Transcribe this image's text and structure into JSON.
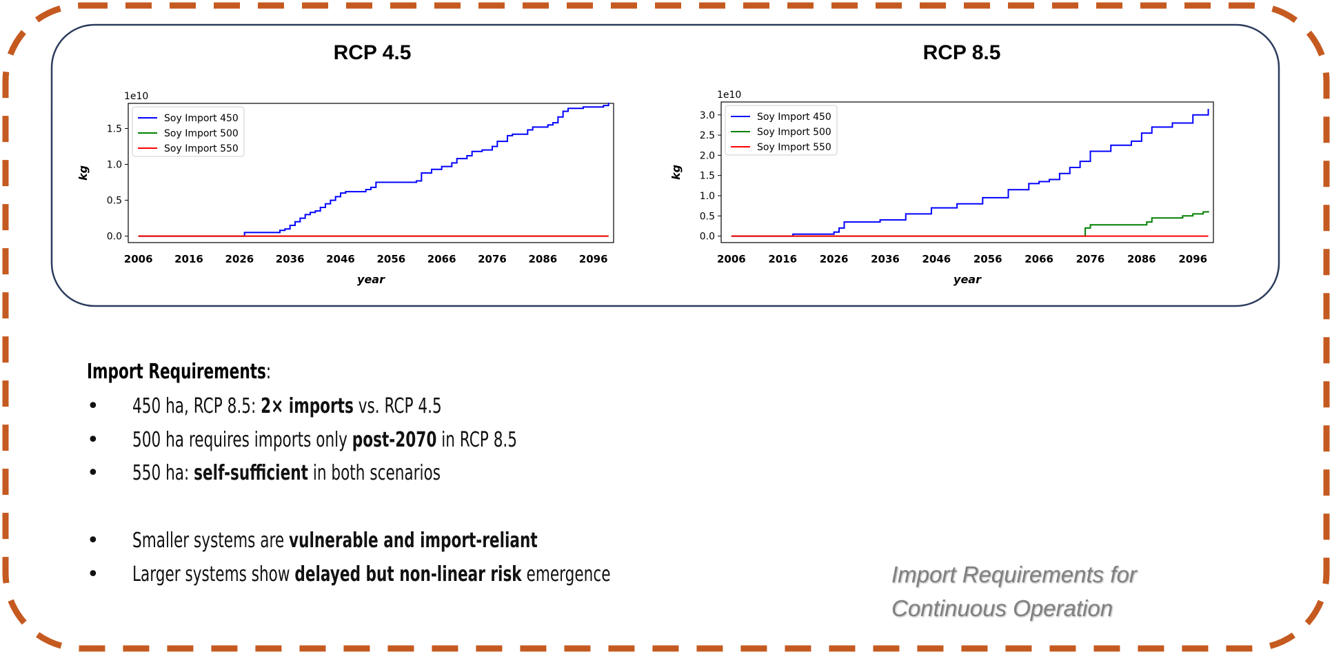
{
  "colors": {
    "frame_dash": "#c55a20",
    "panel_border": "#2a3b5c",
    "series_450": "#0000ff",
    "series_500": "#008000",
    "series_550": "#ff0000"
  },
  "chart_data": [
    {
      "type": "line",
      "title": "RCP 4.5",
      "xlabel": "year",
      "ylabel": "kg",
      "y_multiplier_label": "1e10",
      "x_ticks": [
        "2006",
        "2016",
        "2026",
        "2036",
        "2046",
        "2056",
        "2066",
        "2076",
        "2086",
        "2096"
      ],
      "y_ticks": [
        "0.0",
        "0.5",
        "1.0",
        "1.5"
      ],
      "xlim": [
        2004,
        2100
      ],
      "ylim": [
        -0.09,
        1.85
      ],
      "legend": "top-left",
      "grid": false,
      "series": [
        {
          "name": "Soy Import 450",
          "color": "#0000ff",
          "x": [
            2006,
            2026,
            2027,
            2033,
            2034,
            2035,
            2036,
            2037,
            2038,
            2039,
            2040,
            2041,
            2042,
            2043,
            2044,
            2045,
            2046,
            2047,
            2050,
            2051,
            2052,
            2053,
            2060,
            2061,
            2062,
            2064,
            2066,
            2068,
            2069,
            2071,
            2072,
            2074,
            2076,
            2077,
            2079,
            2080,
            2083,
            2084,
            2087,
            2088,
            2089,
            2090,
            2091,
            2094,
            2098,
            2099
          ],
          "y": [
            0,
            0,
            0.05,
            0.05,
            0.08,
            0.1,
            0.15,
            0.2,
            0.25,
            0.3,
            0.33,
            0.35,
            0.4,
            0.45,
            0.5,
            0.55,
            0.6,
            0.62,
            0.62,
            0.65,
            0.68,
            0.75,
            0.75,
            0.77,
            0.88,
            0.93,
            0.97,
            1.02,
            1.08,
            1.12,
            1.18,
            1.2,
            1.25,
            1.32,
            1.4,
            1.42,
            1.48,
            1.52,
            1.55,
            1.58,
            1.66,
            1.74,
            1.78,
            1.8,
            1.82,
            1.86
          ]
        },
        {
          "name": "Soy Import 500",
          "color": "#008000",
          "x": [
            2006,
            2099
          ],
          "y": [
            0,
            0
          ]
        },
        {
          "name": "Soy Import 550",
          "color": "#ff0000",
          "x": [
            2006,
            2099
          ],
          "y": [
            0,
            0
          ]
        }
      ]
    },
    {
      "type": "line",
      "title": "RCP 8.5",
      "xlabel": "year",
      "ylabel": "kg",
      "y_multiplier_label": "1e10",
      "x_ticks": [
        "2006",
        "2016",
        "2026",
        "2036",
        "2046",
        "2056",
        "2066",
        "2076",
        "2086",
        "2096"
      ],
      "y_ticks": [
        "0.0",
        "0.5",
        "1.0",
        "1.5",
        "2.0",
        "2.5",
        "3.0"
      ],
      "xlim": [
        2004,
        2100
      ],
      "ylim": [
        -0.16,
        3.32
      ],
      "legend": "top-left",
      "grid": false,
      "series": [
        {
          "name": "Soy Import 450",
          "color": "#0000ff",
          "x": [
            2006,
            2016,
            2018,
            2026,
            2027,
            2028,
            2035,
            2040,
            2045,
            2050,
            2055,
            2060,
            2064,
            2066,
            2068,
            2070,
            2072,
            2074,
            2076,
            2080,
            2084,
            2086,
            2088,
            2092,
            2096,
            2099
          ],
          "y": [
            0,
            0,
            0.05,
            0.1,
            0.2,
            0.35,
            0.4,
            0.55,
            0.7,
            0.8,
            0.95,
            1.15,
            1.3,
            1.35,
            1.4,
            1.55,
            1.7,
            1.85,
            2.1,
            2.25,
            2.35,
            2.55,
            2.7,
            2.8,
            3.0,
            3.15
          ]
        },
        {
          "name": "Soy Import 500",
          "color": "#008000",
          "x": [
            2006,
            2074,
            2075,
            2076,
            2086,
            2087,
            2088,
            2094,
            2096,
            2098,
            2099
          ],
          "y": [
            0,
            0,
            0.2,
            0.28,
            0.28,
            0.35,
            0.45,
            0.5,
            0.55,
            0.6,
            0.62
          ]
        },
        {
          "name": "Soy Import 550",
          "color": "#ff0000",
          "x": [
            2006,
            2099
          ],
          "y": [
            0,
            0
          ]
        }
      ]
    }
  ],
  "bullets": {
    "heading": "Import Requirements",
    "heading_suffix": ":",
    "marker": "•",
    "items": [
      {
        "pre": "450 ha, RCP 8.5: ",
        "bold": "2× imports",
        "post": " vs. RCP 4.5"
      },
      {
        "pre": "500 ha requires imports only ",
        "bold": "post-2070",
        "post": " in RCP 8.5"
      },
      {
        "pre": "550 ha: ",
        "bold": "self-sufficient",
        "post": " in both scenarios"
      },
      {
        "pre": "Smaller systems are ",
        "bold": "vulnerable and import-reliant",
        "post": ""
      },
      {
        "pre": "Larger systems show ",
        "bold": "delayed but non-linear risk",
        "post": " emergence"
      }
    ]
  },
  "caption": {
    "line1": "Import Requirements for",
    "line2": "Continuous Operation"
  }
}
